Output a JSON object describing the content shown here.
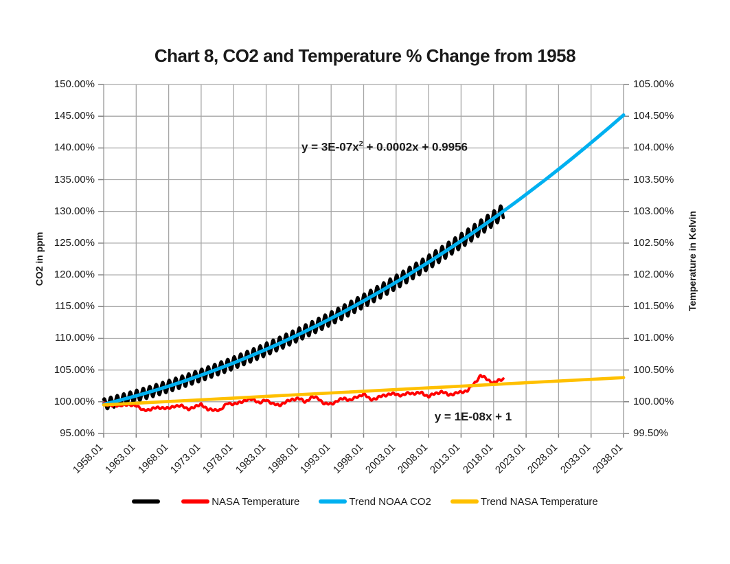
{
  "chart_data": {
    "type": "line",
    "title": "Chart 8, CO2 and Temperature % Change from 1958",
    "grid": true,
    "legend_position": "bottom",
    "x_axis": {
      "range_years": [
        1958.01,
        2038.01
      ],
      "tick_step_years": 5,
      "tick_label_rotation_deg": 45,
      "tick_labels": [
        "1958.01",
        "1963.01",
        "1968.01",
        "1973.01",
        "1978.01",
        "1983.01",
        "1988.01",
        "1993.01",
        "1998.01",
        "2003.01",
        "2008.01",
        "2013.01",
        "2018.01",
        "2023.01",
        "2028.01",
        "2033.01",
        "2038.01"
      ]
    },
    "left_axis": {
      "label": "CO2 in ppm",
      "range_pct": [
        95.0,
        150.0
      ],
      "tick_step_pct": 5.0,
      "tick_labels": [
        "150.00%",
        "145.00%",
        "140.00%",
        "135.00%",
        "130.00%",
        "125.00%",
        "120.00%",
        "115.00%",
        "110.00%",
        "105.00%",
        "100.00%",
        "95.00%"
      ]
    },
    "right_axis": {
      "label": "Temperature in Kelvin",
      "range_pct": [
        99.5,
        105.0
      ],
      "tick_step_pct": 0.5,
      "tick_labels": [
        "105.00%",
        "104.50%",
        "104.00%",
        "103.50%",
        "103.00%",
        "102.50%",
        "102.00%",
        "101.50%",
        "101.00%",
        "100.50%",
        "100.00%",
        "99.50%"
      ]
    },
    "annotations": [
      {
        "text": "y = 3E-07x2 + 0.0002x + 0.9956",
        "parts": {
          "prefix": "y = 3E-07x",
          "sup": "2",
          "suffix": " + 0.0002x + 0.9956"
        },
        "x_year": 2001.2,
        "y_left_pct": 140.1
      },
      {
        "text": "y = 1E-08x + 1",
        "parts": {
          "prefix": "y = 1E-08x + 1",
          "sup": "",
          "suffix": ""
        },
        "x_year": 2014.9,
        "y_left_pct": 97.6
      }
    ],
    "series": [
      {
        "name": "NOAA CO2",
        "legend_label": "",
        "color": "#000000",
        "axis": "left",
        "style": "seasonal-oscillation",
        "stroke_width": 4.6,
        "x_start": 1958.0,
        "x_end": 2019.5,
        "points_per_year": 12,
        "seasonal_amplitude_pct": [
          0.85,
          1.15
        ],
        "annual_trend_pct": [
          99.6,
          99.85,
          100.11,
          100.37,
          100.65,
          100.93,
          101.22,
          101.51,
          101.82,
          102.13,
          102.46,
          102.79,
          103.12,
          103.47,
          103.83,
          104.19,
          104.56,
          104.94,
          105.33,
          105.72,
          106.12,
          106.54,
          106.96,
          107.38,
          107.82,
          108.26,
          108.71,
          109.17,
          109.64,
          110.12,
          110.6,
          111.1,
          111.6,
          112.11,
          112.62,
          113.15,
          113.68,
          114.22,
          114.77,
          115.33,
          115.9,
          116.47,
          117.05,
          117.64,
          118.24,
          118.85,
          119.46,
          120.08,
          120.72,
          121.35,
          122.0,
          122.65,
          123.32,
          123.99,
          124.67,
          125.36,
          126.05,
          126.76,
          127.47,
          128.19,
          128.92,
          129.65
        ]
      },
      {
        "name": "NASA Temperature",
        "legend_label": "NASA Temperature",
        "color": "#FF0000",
        "axis": "right",
        "style": "wiggly-line",
        "stroke_width": 3.8,
        "x_start": 1958.0,
        "x_end": 2019.5,
        "annual_values_pct": [
          99.97,
          99.95,
          99.93,
          99.96,
          99.94,
          99.95,
          99.86,
          99.88,
          99.9,
          99.91,
          99.89,
          99.94,
          99.93,
          99.89,
          99.91,
          99.97,
          99.87,
          99.88,
          99.86,
          99.99,
          99.95,
          100.0,
          100.02,
          100.05,
          99.97,
          100.04,
          99.96,
          99.95,
          99.99,
          100.04,
          100.05,
          100.0,
          100.07,
          100.06,
          99.96,
          99.97,
          100.01,
          100.06,
          100.02,
          100.08,
          100.12,
          100.04,
          100.05,
          100.1,
          100.12,
          100.12,
          100.1,
          100.14,
          100.13,
          100.14,
          100.08,
          100.13,
          100.16,
          100.11,
          100.13,
          100.15,
          100.18,
          100.28,
          100.42,
          100.35,
          100.3,
          100.34
        ]
      },
      {
        "name": "Trend NOAA CO2",
        "legend_label": "Trend NOAA CO2",
        "color": "#00B0F0",
        "axis": "left",
        "style": "smooth-trend",
        "stroke_width": 5,
        "equation": "y = 3E-07x2 + 0.0002x + 0.9956",
        "x_start": 1958.0,
        "step_years": 2,
        "values_pct": [
          99.6,
          100.11,
          100.65,
          101.22,
          101.82,
          102.46,
          103.12,
          103.83,
          104.56,
          105.33,
          106.12,
          106.96,
          107.82,
          108.71,
          109.64,
          110.6,
          111.6,
          112.62,
          113.68,
          114.77,
          115.9,
          117.05,
          118.24,
          119.46,
          120.72,
          122.0,
          123.32,
          124.67,
          126.05,
          127.47,
          128.92,
          130.4,
          131.91,
          133.46,
          135.03,
          136.64,
          138.29,
          139.96,
          141.67,
          143.41,
          145.18
        ]
      },
      {
        "name": "Trend NASA Temperature",
        "legend_label": "Trend NASA Temperature",
        "color": "#FFC000",
        "axis": "right",
        "style": "straight-trend",
        "stroke_width": 4.6,
        "equation": "y = 1E-08x + 1",
        "points": [
          [
            1958.0,
            99.95
          ],
          [
            2038.01,
            100.38
          ]
        ]
      }
    ]
  }
}
